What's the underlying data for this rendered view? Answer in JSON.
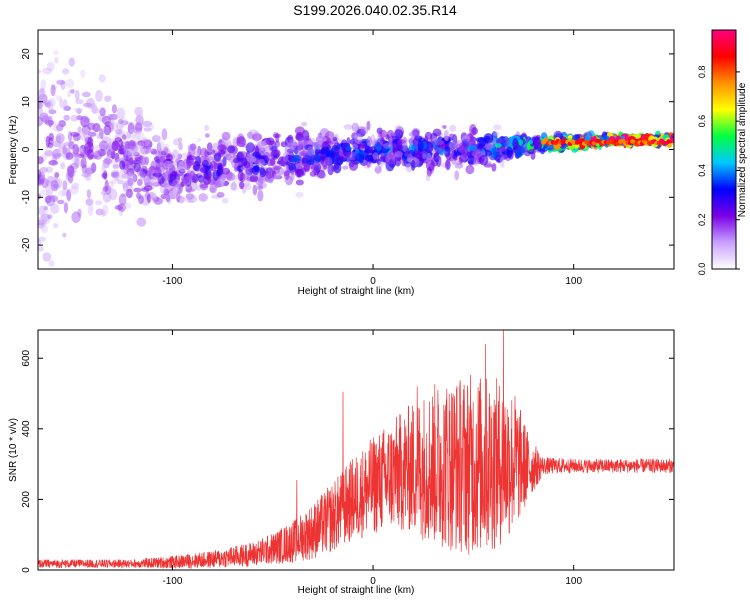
{
  "figure": {
    "title": "S199.2026.040.02.35.R14"
  },
  "chart_data": [
    {
      "type": "heatmap",
      "xlabel": "Height of straight line (km)",
      "ylabel": "Frequency (Hz)",
      "xlim": [
        -167,
        150
      ],
      "ylim": [
        -25,
        25
      ],
      "xticks": [
        -100,
        0,
        100
      ],
      "yticks": [
        -20,
        -10,
        0,
        10,
        20
      ],
      "colorbar": {
        "label": "Normalized spectral amplitude",
        "range": [
          0.0,
          0.97
        ],
        "ticks": [
          "0.0",
          "0.2",
          "0.4",
          "0.6",
          "0.8"
        ],
        "colors": [
          "#ffffff",
          "#c9a0ff",
          "#7a00e6",
          "#0000ff",
          "#00c8ff",
          "#00ff40",
          "#ffff00",
          "#ff9000",
          "#ff0000",
          "#ff0080"
        ]
      },
      "description_points": [
        {
          "x": -150,
          "f_center": 0,
          "f_spread": 25,
          "amp": 0.15
        },
        {
          "x": -100,
          "f_center": -5,
          "f_spread": 8,
          "amp": 0.2
        },
        {
          "x": -50,
          "f_center": -2,
          "f_spread": 7,
          "amp": 0.25
        },
        {
          "x": 0,
          "f_center": 0,
          "f_spread": 5,
          "amp": 0.3
        },
        {
          "x": 50,
          "f_center": 0,
          "f_spread": 5,
          "amp": 0.3
        },
        {
          "x": 80,
          "f_center": 1,
          "f_spread": 2,
          "amp": 0.45
        },
        {
          "x": 120,
          "f_center": 2,
          "f_spread": 1,
          "amp": 0.9
        }
      ]
    },
    {
      "type": "line",
      "xlabel": "Height of straight line (km)",
      "ylabel": "SNR (10 * v/v)",
      "xlim": [
        -167,
        150
      ],
      "ylim": [
        0,
        680
      ],
      "xticks": [
        -100,
        0,
        100
      ],
      "yticks": [
        0,
        200,
        400,
        600
      ],
      "color": "#ee3333",
      "envelope": {
        "x": [
          -167,
          -120,
          -100,
          -80,
          -60,
          -50,
          -40,
          -30,
          -20,
          -10,
          0,
          10,
          20,
          30,
          40,
          50,
          60,
          70,
          78,
          85,
          100,
          120,
          150
        ],
        "mean": [
          18,
          18,
          22,
          30,
          45,
          60,
          80,
          110,
          150,
          200,
          240,
          270,
          290,
          300,
          300,
          300,
          300,
          310,
          290,
          295,
          295,
          295,
          295
        ],
        "amplitude": [
          12,
          12,
          18,
          25,
          35,
          45,
          60,
          80,
          100,
          120,
          140,
          160,
          190,
          230,
          250,
          260,
          250,
          210,
          90,
          25,
          20,
          20,
          20
        ]
      },
      "spikes": [
        {
          "x": -15,
          "y": 505
        },
        {
          "x": -38,
          "y": 255
        },
        {
          "x": 22,
          "y": 520
        },
        {
          "x": 65,
          "y": 680
        },
        {
          "x": 56,
          "y": 640
        }
      ]
    }
  ]
}
